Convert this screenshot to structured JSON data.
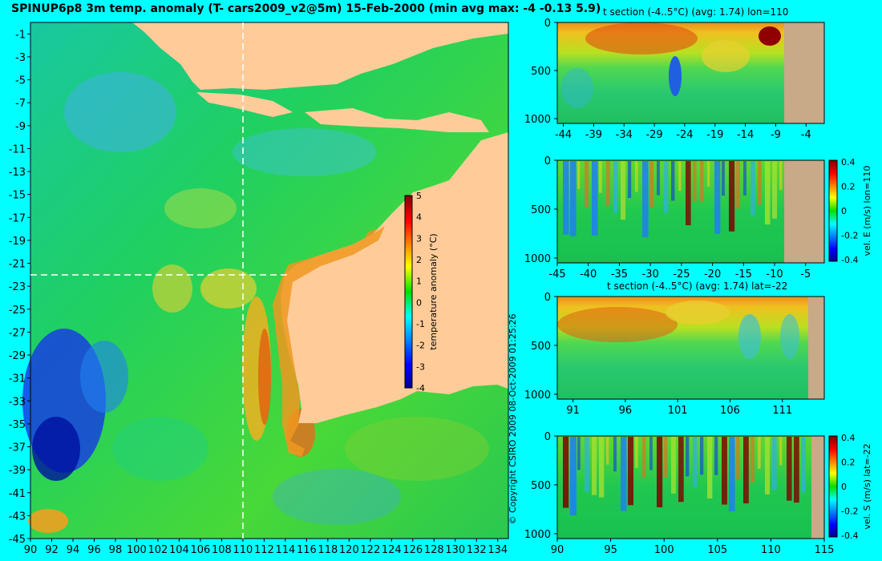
{
  "colors": {
    "background": "#00ffff",
    "land": "#ffcc99",
    "section_land": "#c8a988",
    "guide_line": "#ffffff"
  },
  "title": "SPINUP6p8 3m temp. anomaly (T- cars2009_v2@5m) 15-Feb-2000 (min avg max: -4 -0.13 5.9)",
  "copyright": "© Copyright CSIRO 2009   08-Oct-2009 01:25:26",
  "chart_data": [
    {
      "id": "map",
      "type": "heatmap",
      "title": "SPINUP6p8 3m temp. anomaly (T- cars2009_v2@5m) 15-Feb-2000 (min avg max: -4 -0.13 5.9)",
      "xlim": [
        90,
        135
      ],
      "ylim": [
        -45,
        0
      ],
      "x_ticks": [
        "90",
        "92",
        "94",
        "96",
        "98",
        "100",
        "102",
        "104",
        "106",
        "108",
        "110",
        "112",
        "114",
        "116",
        "118",
        "120",
        "122",
        "124",
        "126",
        "128",
        "130",
        "132",
        "134"
      ],
      "y_ticks": [
        "-1",
        "-3",
        "-5",
        "-7",
        "-9",
        "-11",
        "-13",
        "-15",
        "-17",
        "-19",
        "-21",
        "-23",
        "-25",
        "-27",
        "-29",
        "-31",
        "-33",
        "-35",
        "-37",
        "-39",
        "-41",
        "-43",
        "-45"
      ],
      "guide_lines": {
        "lon": 110,
        "lat": -22
      },
      "colorbar": {
        "label": "temperature anomaly (°C)",
        "range": [
          -4,
          5
        ],
        "ticks": [
          "5",
          "4",
          "3",
          "2",
          "1",
          "0",
          "-1",
          "-2",
          "-3",
          "-4"
        ]
      },
      "stats": {
        "min": -4,
        "avg": -0.13,
        "max": 5.9
      }
    },
    {
      "id": "t-section-lon110",
      "type": "heatmap",
      "title": "t section (-4..5°C) (avg: 1.74) lon=110",
      "xlim": [
        -45,
        -1
      ],
      "x_ticks": [
        "-44",
        "-39",
        "-34",
        "-29",
        "-24",
        "-19",
        "-14",
        "-9",
        "-4"
      ],
      "y_ticks": [
        "0",
        "500",
        "1000"
      ],
      "ylim": [
        1050,
        0
      ]
    },
    {
      "id": "vel-e-section",
      "type": "heatmap",
      "title": "",
      "xlim": [
        -45,
        -2
      ],
      "x_ticks": [
        "-45",
        "-40",
        "-35",
        "-30",
        "-25",
        "-20",
        "-15",
        "-10",
        "-5"
      ],
      "y_ticks": [
        "0",
        "500",
        "1000"
      ],
      "ylim": [
        1050,
        0
      ],
      "colorbar": {
        "label": "vel. E (m/s) lon=110",
        "range": [
          -0.4,
          0.4
        ],
        "ticks": [
          "0.4",
          "0.2",
          "0",
          "-0.2",
          "-0.4"
        ]
      }
    },
    {
      "id": "t-section-lat22",
      "type": "heatmap",
      "title": "t section (-4..5°C) (avg: 1.74) lat=-22",
      "xlim": [
        89.5,
        115
      ],
      "x_ticks": [
        "91",
        "96",
        "101",
        "106",
        "111"
      ],
      "y_ticks": [
        "0",
        "500",
        "1000"
      ],
      "ylim": [
        1050,
        0
      ]
    },
    {
      "id": "vel-s-section",
      "type": "heatmap",
      "title": "",
      "xlim": [
        90,
        115
      ],
      "x_ticks": [
        "90",
        "95",
        "100",
        "105",
        "110",
        "115"
      ],
      "y_ticks": [
        "0",
        "500",
        "1000"
      ],
      "ylim": [
        1050,
        0
      ],
      "colorbar": {
        "label": "vel. S (m/s) lat=-22",
        "range": [
          -0.4,
          0.4
        ],
        "ticks": [
          "0.4",
          "0.2",
          "0",
          "-0.2",
          "-0.4"
        ]
      }
    }
  ]
}
